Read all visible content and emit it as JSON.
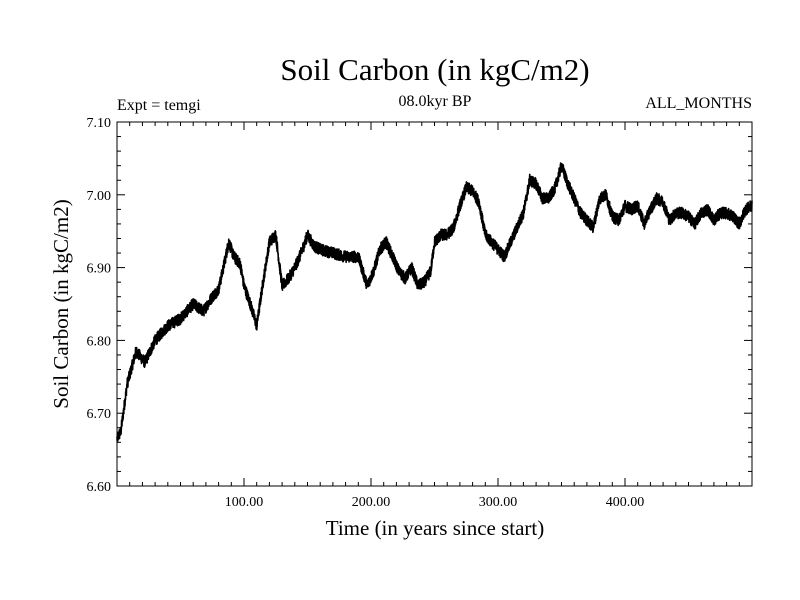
{
  "chart_data": {
    "type": "line",
    "title": "Soil Carbon (in kgC/m2)",
    "subtitle": "08.0kyr BP",
    "left_label": "Expt = temgi",
    "right_label": "ALL_MONTHS",
    "xlabel": "Time (in years since start)",
    "ylabel": "Soil Carbon (in kgC/m2)",
    "xlim": [
      0,
      500
    ],
    "ylim": [
      6.6,
      7.1
    ],
    "x_ticks": [
      100,
      200,
      300,
      400
    ],
    "x_tick_labels": [
      "100.00",
      "200.00",
      "300.00",
      "400.00"
    ],
    "y_ticks": [
      6.6,
      6.7,
      6.8,
      6.9,
      7.0,
      7.1
    ],
    "y_tick_labels": [
      "6.60",
      "6.70",
      "6.80",
      "6.90",
      "7.00",
      "7.10"
    ],
    "grid": false,
    "line_color": "#000000",
    "series": [
      {
        "name": "Soil Carbon",
        "noise_amplitude": 0.008,
        "x": [
          0,
          3,
          8,
          15,
          22,
          30,
          40,
          50,
          60,
          68,
          75,
          80,
          85,
          88,
          92,
          97,
          100,
          105,
          110,
          115,
          120,
          125,
          130,
          135,
          140,
          145,
          150,
          155,
          160,
          170,
          180,
          190,
          197,
          202,
          207,
          212,
          217,
          222,
          227,
          232,
          237,
          242,
          247,
          250,
          255,
          260,
          265,
          270,
          275,
          280,
          285,
          290,
          295,
          300,
          305,
          310,
          315,
          320,
          325,
          330,
          335,
          340,
          345,
          350,
          355,
          360,
          365,
          370,
          375,
          380,
          385,
          390,
          395,
          400,
          405,
          410,
          415,
          420,
          425,
          430,
          435,
          440,
          445,
          450,
          455,
          460,
          465,
          470,
          475,
          480,
          485,
          490,
          495,
          500
        ],
        "y": [
          6.665,
          6.675,
          6.74,
          6.785,
          6.77,
          6.8,
          6.82,
          6.83,
          6.85,
          6.84,
          6.86,
          6.87,
          6.91,
          6.935,
          6.915,
          6.905,
          6.875,
          6.85,
          6.82,
          6.88,
          6.935,
          6.945,
          6.875,
          6.885,
          6.9,
          6.92,
          6.945,
          6.93,
          6.925,
          6.92,
          6.915,
          6.915,
          6.875,
          6.895,
          6.925,
          6.935,
          6.915,
          6.895,
          6.885,
          6.9,
          6.875,
          6.88,
          6.895,
          6.935,
          6.945,
          6.945,
          6.955,
          6.985,
          7.01,
          7.005,
          6.99,
          6.945,
          6.935,
          6.925,
          6.915,
          6.935,
          6.955,
          6.975,
          7.02,
          7.015,
          6.995,
          6.995,
          7.01,
          7.04,
          7.015,
          6.995,
          6.975,
          6.965,
          6.955,
          6.995,
          7.0,
          6.97,
          6.965,
          6.985,
          6.98,
          6.985,
          6.96,
          6.98,
          6.995,
          6.99,
          6.965,
          6.975,
          6.975,
          6.97,
          6.96,
          6.975,
          6.98,
          6.965,
          6.975,
          6.975,
          6.97,
          6.96,
          6.98,
          6.985
        ]
      }
    ]
  }
}
